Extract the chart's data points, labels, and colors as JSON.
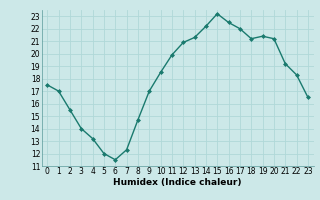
{
  "x": [
    0,
    1,
    2,
    3,
    4,
    5,
    6,
    7,
    8,
    9,
    10,
    11,
    12,
    13,
    14,
    15,
    16,
    17,
    18,
    19,
    20,
    21,
    22,
    23
  ],
  "y": [
    17.5,
    17.0,
    15.5,
    14.0,
    13.2,
    12.0,
    11.5,
    12.3,
    14.7,
    17.0,
    18.5,
    19.9,
    20.9,
    21.3,
    22.2,
    23.2,
    22.5,
    22.0,
    21.2,
    21.4,
    21.2,
    19.2,
    18.3,
    16.5
  ],
  "line_color": "#1a7a6e",
  "marker": "D",
  "marker_size": 2.0,
  "bg_color": "#cce8e8",
  "grid_color": "#b0d8d8",
  "xlabel": "Humidex (Indice chaleur)",
  "ylim": [
    11,
    23.5
  ],
  "xlim": [
    -0.5,
    23.5
  ],
  "yticks": [
    11,
    12,
    13,
    14,
    15,
    16,
    17,
    18,
    19,
    20,
    21,
    22,
    23
  ],
  "xticks": [
    0,
    1,
    2,
    3,
    4,
    5,
    6,
    7,
    8,
    9,
    10,
    11,
    12,
    13,
    14,
    15,
    16,
    17,
    18,
    19,
    20,
    21,
    22,
    23
  ],
  "tick_fontsize": 5.5,
  "xlabel_fontsize": 6.5,
  "line_width": 1.0
}
